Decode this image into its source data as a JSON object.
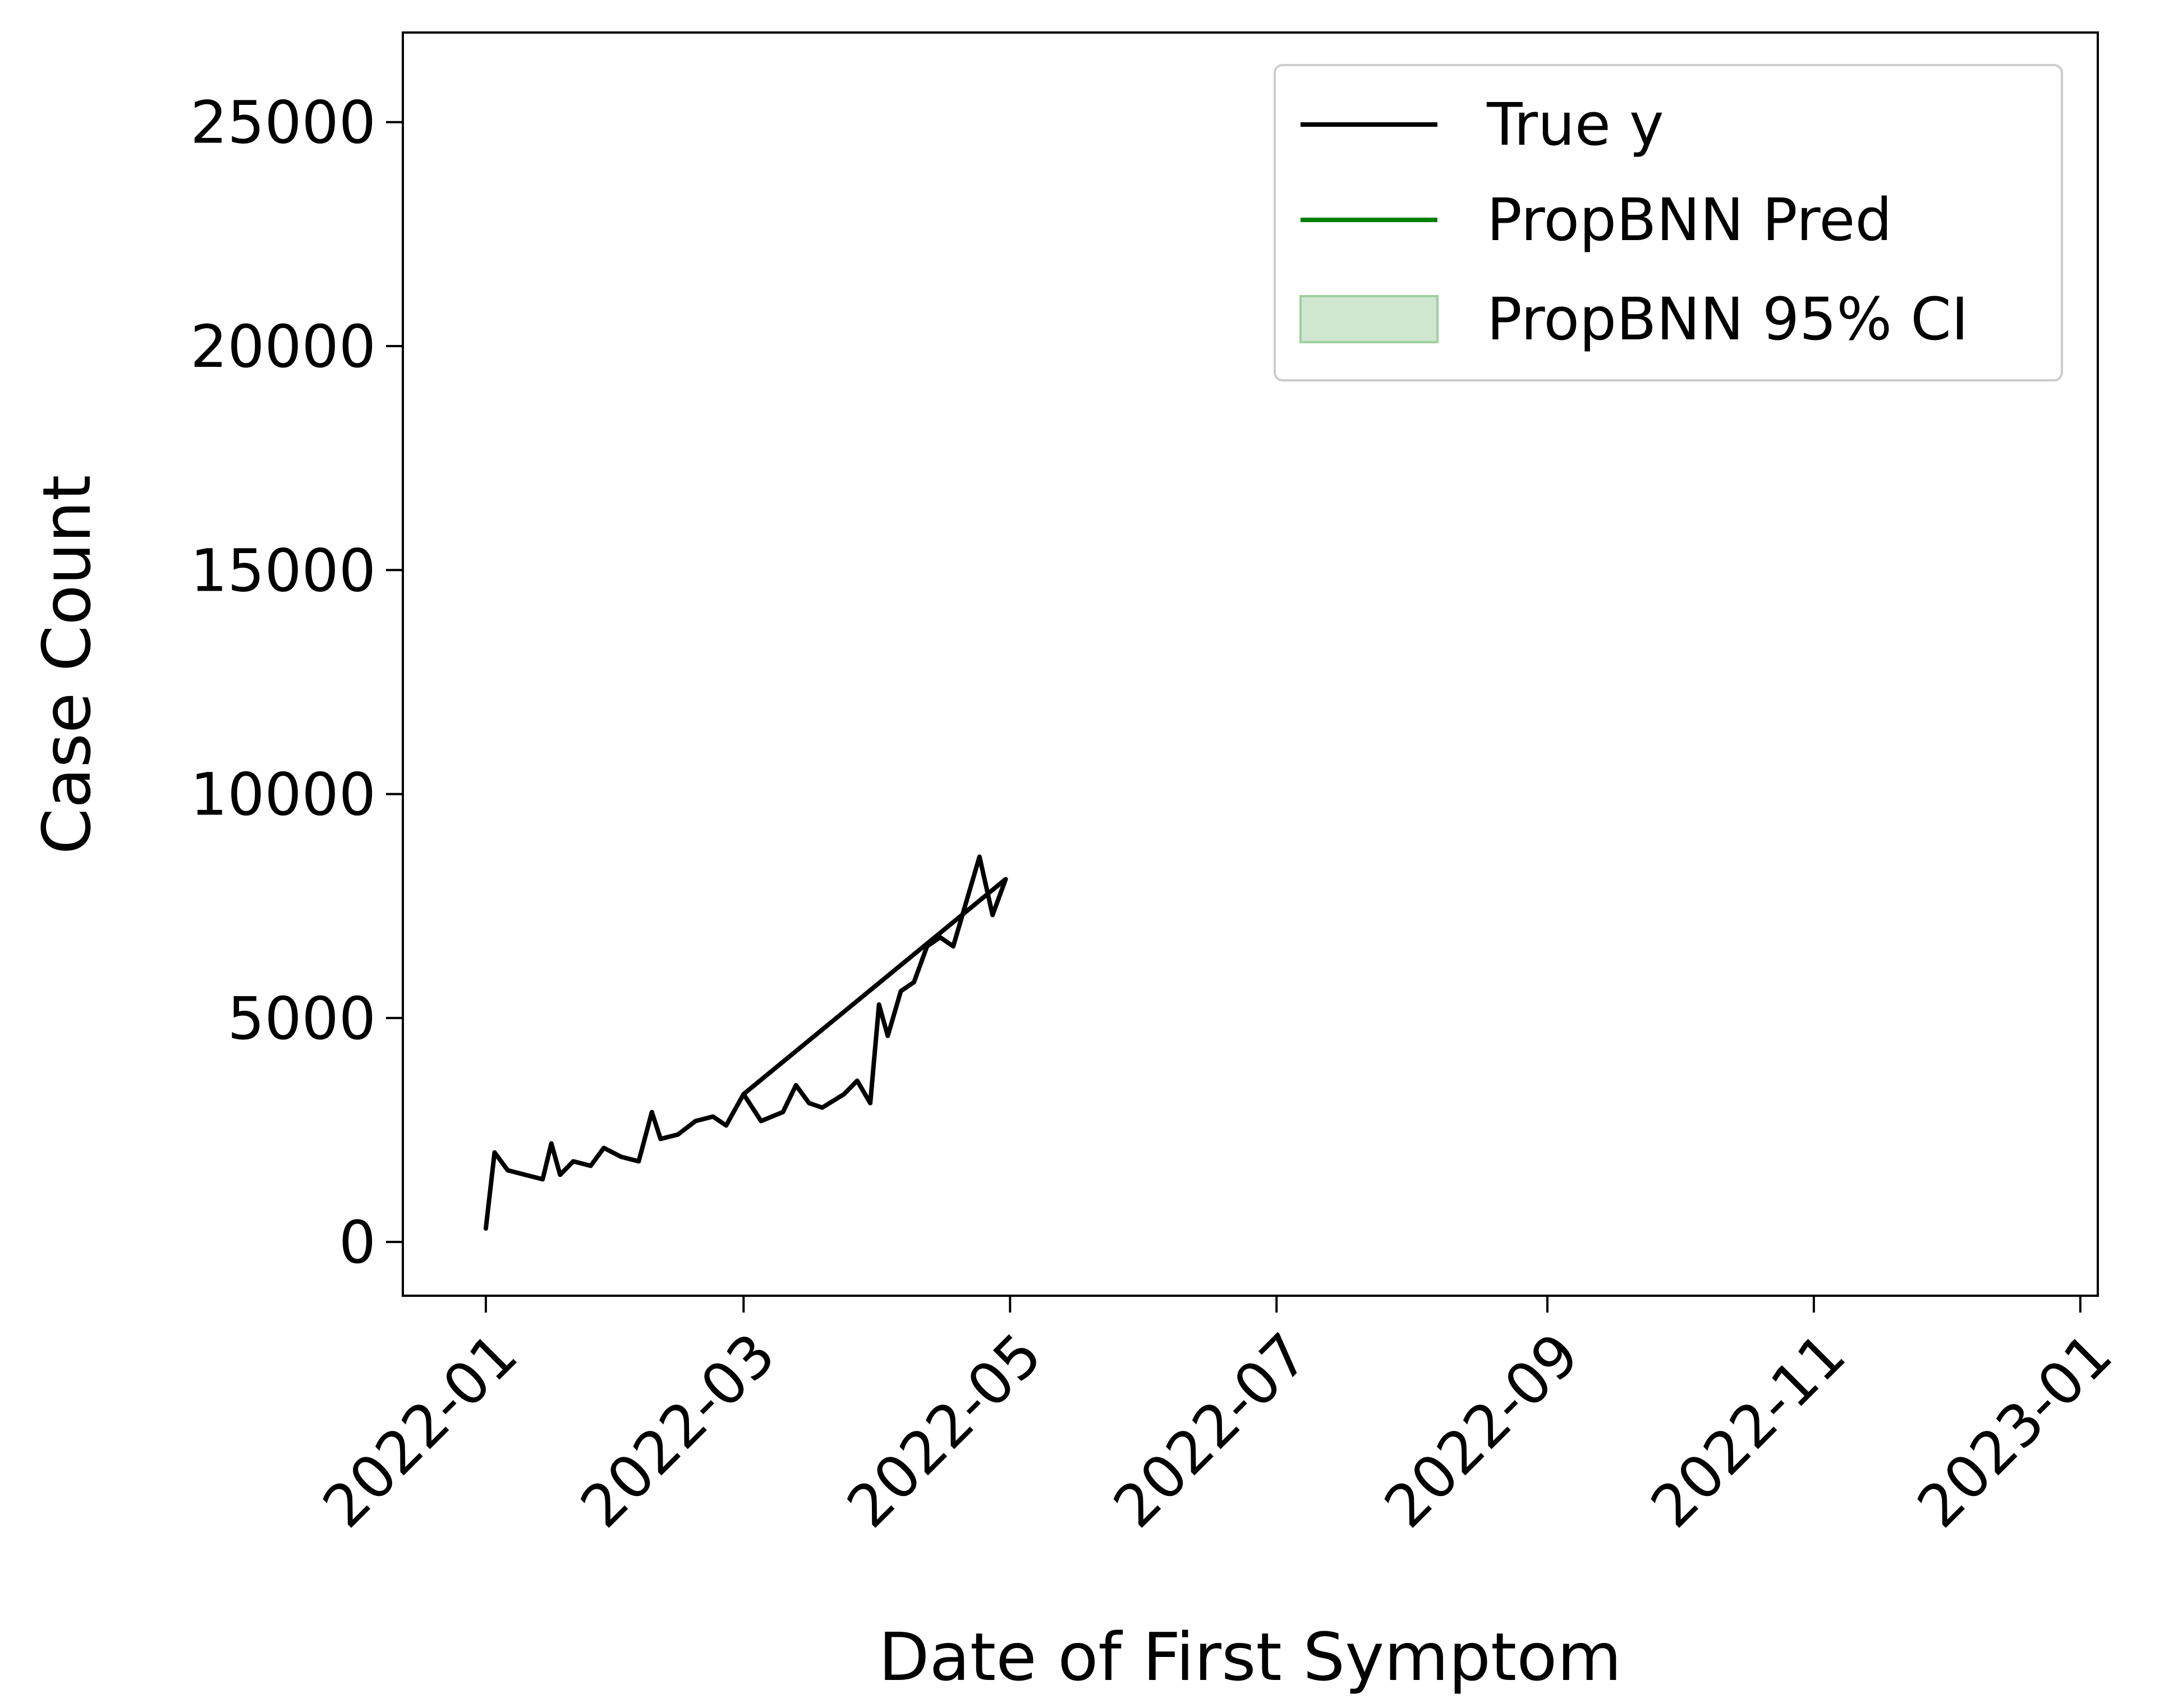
{
  "chart_data": {
    "type": "line",
    "xlabel": "Date of First Symptom",
    "ylabel": "Case Count",
    "x_tick_labels": [
      "2022-01",
      "2022-03",
      "2022-05",
      "2022-07",
      "2022-09",
      "2022-11",
      "2023-01"
    ],
    "x_tick_dates": [
      "2022-01-01",
      "2022-03-01",
      "2022-05-01",
      "2022-07-01",
      "2022-09-01",
      "2022-11-01",
      "2023-01-01"
    ],
    "xlim": [
      "2021-12-13",
      "2023-01-05"
    ],
    "y_tick_labels": [
      "0",
      "5000",
      "10000",
      "15000",
      "20000",
      "25000"
    ],
    "y_ticks": [
      0,
      5000,
      10000,
      15000,
      20000,
      25000
    ],
    "ylim": [
      -1200,
      27000
    ],
    "grid": false,
    "legend_position": "top-right",
    "colors": {
      "true_y": "#000000",
      "pred": "#008000",
      "ci_fill": "#cfe6cf",
      "ci_edge": "#9fd09f"
    },
    "legend": [
      {
        "label": "True y",
        "kind": "line",
        "series": "true_y"
      },
      {
        "label": "PropBNN Pred",
        "kind": "line",
        "series": "pred"
      },
      {
        "label": "PropBNN 95% CI",
        "kind": "band",
        "series": "ci"
      }
    ],
    "series": [
      {
        "key": "true_y",
        "name": "True y",
        "points": [
          [
            "2022-01-01",
            300
          ],
          [
            "2022-01-03",
            2000
          ],
          [
            "2022-01-06",
            1600
          ],
          [
            "2022-01-10",
            1500
          ],
          [
            "2022-01-14",
            1400
          ],
          [
            "2022-01-16",
            2200
          ],
          [
            "2022-01-18",
            1500
          ],
          [
            "2022-01-21",
            1800
          ],
          [
            "2022-01-25",
            1700
          ],
          [
            "2022-01-28",
            2100
          ],
          [
            "2022-02-01",
            1900
          ],
          [
            "2022-02-05",
            1800
          ],
          [
            "2022-02-08",
            2900
          ],
          [
            "2022-02-10",
            2300
          ],
          [
            "2022-02-14",
            2400
          ],
          [
            "2022-02-18",
            2700
          ],
          [
            "2022-02-22",
            2800
          ],
          [
            "2022-02-25",
            2600
          ],
          [
            "2022-03-01",
            3300
          ],
          [
            "2022-03-05",
            2700
          ],
          [
            "2022-03-10",
            2900
          ],
          [
            "2022-03-13",
            3500
          ],
          [
            "2022-03-16",
            3100
          ],
          [
            "2022-03-19",
            3000
          ],
          [
            "2022-03-24",
            3300
          ],
          [
            "2022-03-27",
            3600
          ],
          [
            "2022-03-30",
            3100
          ],
          [
            "2022-04-01",
            5300
          ],
          [
            "2022-04-03",
            4600
          ],
          [
            "2022-04-06",
            5600
          ],
          [
            "2022-04-09",
            5800
          ],
          [
            "2022-04-12",
            6600
          ],
          [
            "2022-04-15",
            6800
          ],
          [
            "2022-04-18",
            6600
          ],
          [
            "2022-04-21",
            7600
          ],
          [
            "2022-04-24",
            8600
          ],
          [
            "2022-04-27",
            7300
          ],
          [
            "2022-04-30",
            8100
          ],
          [
            "2022-03-01",
            3300
          ]
        ]
      }
    ]
  }
}
